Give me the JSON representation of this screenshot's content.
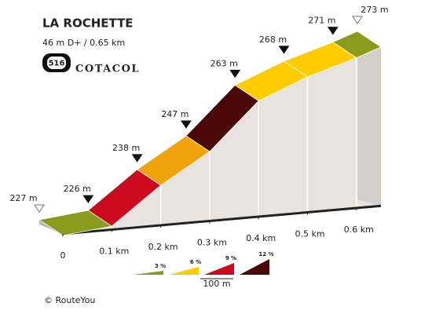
{
  "chart_data": {
    "type": "profile",
    "title": "LA ROCHETTE",
    "subtitle": "46 m D+ / 0.65 km",
    "badge": "516",
    "brand": "COTACOL",
    "credit": "© RouteYou",
    "x": [
      0,
      0.1,
      0.2,
      0.3,
      0.4,
      0.5,
      0.6,
      0.65
    ],
    "values": [
      227,
      226,
      238,
      247,
      263,
      268,
      271,
      273
    ],
    "value_labels": [
      "227 m",
      "226 m",
      "238 m",
      "247 m",
      "263 m",
      "268 m",
      "271 m",
      "273 m"
    ],
    "segment_colors": [
      "#8a9a1c",
      "#cc0a1e",
      "#f0a30a",
      "#4a0808",
      "#ffcc00",
      "#ffcc00",
      "#8a9a1c"
    ],
    "xlim": [
      0,
      0.65
    ],
    "xticks": [
      {
        "value": 0,
        "label": "0"
      },
      {
        "value": 0.1,
        "label": "0.1 km"
      },
      {
        "value": 0.2,
        "label": "0.2 km"
      },
      {
        "value": 0.3,
        "label": "0.3 km"
      },
      {
        "value": 0.4,
        "label": "0.4 km"
      },
      {
        "value": 0.5,
        "label": "0.5 km"
      },
      {
        "value": 0.6,
        "label": "0.6 km"
      }
    ],
    "legend": [
      {
        "label": "3 %",
        "color": "#8a9a1c"
      },
      {
        "label": "6 %",
        "color": "#ffcc00"
      },
      {
        "label": "9 %",
        "color": "#cc0a1e"
      },
      {
        "label": "12 %",
        "color": "#4a0808"
      }
    ],
    "scale_label": "100 m"
  }
}
